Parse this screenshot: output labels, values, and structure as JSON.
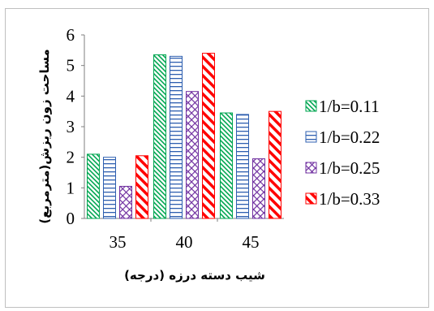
{
  "chart_data": {
    "type": "bar",
    "categories": [
      "35",
      "40",
      "45"
    ],
    "series": [
      {
        "name": "1/b=0.11",
        "values": [
          2.1,
          5.35,
          3.45
        ],
        "color": "#00a651",
        "pattern": "diag-dots"
      },
      {
        "name": "1/b=0.22",
        "values": [
          2.0,
          5.3,
          3.4
        ],
        "color": "#2e5fb0",
        "pattern": "horizontal-lines"
      },
      {
        "name": "1/b=0.25",
        "values": [
          1.05,
          4.15,
          1.95
        ],
        "color": "#7030a0",
        "pattern": "diag-grid"
      },
      {
        "name": "1/b=0.33",
        "values": [
          2.05,
          5.4,
          3.5
        ],
        "color": "#ff0000",
        "pattern": "wide-diagonal"
      }
    ],
    "xlabel": "شیب دسته درزه (درجه)",
    "ylabel": "مساحت زون ریزش(مترمربع)",
    "ylim": [
      0,
      6
    ],
    "yticks": [
      0,
      1,
      2,
      3,
      4,
      5,
      6
    ],
    "grid": false,
    "legend": "right"
  }
}
